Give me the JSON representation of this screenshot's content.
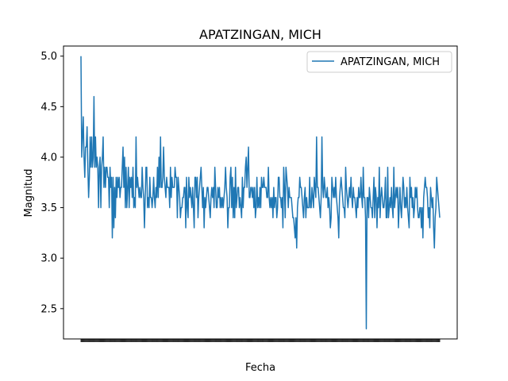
{
  "chart_data": {
    "type": "line",
    "title": "APATZINGAN, MICH",
    "xlabel": "Fecha",
    "ylabel": "Magnitud",
    "ylim": [
      2.2,
      5.1
    ],
    "yticks": [
      2.5,
      3.0,
      3.5,
      4.0,
      4.5,
      5.0
    ],
    "ytick_labels": [
      "2.5",
      "3.0",
      "3.5",
      "4.0",
      "4.5",
      "5.0"
    ],
    "grid": false,
    "legend_position": "top-right",
    "line_color": "#1f77b4",
    "series": [
      {
        "name": "APATZINGAN, MICH",
        "values": [
          5.0,
          4.0,
          4.2,
          4.4,
          4.0,
          3.8,
          4.1,
          4.1,
          4.3,
          3.9,
          3.6,
          3.8,
          4.2,
          3.9,
          4.2,
          3.9,
          4.0,
          4.6,
          3.9,
          4.2,
          3.9,
          4.0,
          3.9,
          3.5,
          3.9,
          4.0,
          3.5,
          3.9,
          4.0,
          4.2,
          3.7,
          3.9,
          3.7,
          3.9,
          3.9,
          3.8,
          3.8,
          3.5,
          3.9,
          3.7,
          3.8,
          3.2,
          3.8,
          3.3,
          3.7,
          3.4,
          3.8,
          3.6,
          3.8,
          3.7,
          3.8,
          3.6,
          3.7,
          3.7,
          3.9,
          4.1,
          3.7,
          4.0,
          3.5,
          3.9,
          3.5,
          3.7,
          3.9,
          3.5,
          3.8,
          3.7,
          3.8,
          3.6,
          3.9,
          3.5,
          3.6,
          3.5,
          4.2,
          3.7,
          3.8,
          3.7,
          3.6,
          3.7,
          3.6,
          3.6,
          3.9,
          3.7,
          3.6,
          3.3,
          3.6,
          3.9,
          3.9,
          3.5,
          3.6,
          3.5,
          3.8,
          3.6,
          3.6,
          3.5,
          3.6,
          3.8,
          3.6,
          3.5,
          3.7,
          3.6,
          3.9,
          3.6,
          4.0,
          3.7,
          4.2,
          3.7,
          3.7,
          3.8,
          4.1,
          3.8,
          3.7,
          3.6,
          3.8,
          3.7,
          3.7,
          3.7,
          3.5,
          3.9,
          3.6,
          3.8,
          3.7,
          3.7,
          3.7,
          3.9,
          3.8,
          3.8,
          3.4,
          3.8,
          3.7,
          3.6,
          3.4,
          3.5,
          3.5,
          3.6,
          3.6,
          3.7,
          3.7,
          3.3,
          3.8,
          3.5,
          3.4,
          3.8,
          3.6,
          3.7,
          3.6,
          3.5,
          3.7,
          3.5,
          3.3,
          3.8,
          3.8,
          3.6,
          3.8,
          3.4,
          3.6,
          3.7,
          3.8,
          3.9,
          3.7,
          3.5,
          3.7,
          3.3,
          3.6,
          3.5,
          3.6,
          3.7,
          3.7,
          3.6,
          3.5,
          3.4,
          3.6,
          3.7,
          3.6,
          3.7,
          3.5,
          3.9,
          3.7,
          3.5,
          3.5,
          3.7,
          3.6,
          3.7,
          3.5,
          3.6,
          3.5,
          3.6,
          3.5,
          3.6,
          3.7,
          3.9,
          3.7,
          3.6,
          3.3,
          3.5,
          3.5,
          3.8,
          3.9,
          3.5,
          3.8,
          3.4,
          3.7,
          3.4,
          3.9,
          3.5,
          3.6,
          3.7,
          3.7,
          3.5,
          3.6,
          3.5,
          3.4,
          3.8,
          3.5,
          3.7,
          3.7,
          3.9,
          4.0,
          3.7,
          3.9,
          4.1,
          3.6,
          3.6,
          3.7,
          3.7,
          3.6,
          3.7,
          3.5,
          3.7,
          3.4,
          3.5,
          3.8,
          3.5,
          3.6,
          3.5,
          3.7,
          3.5,
          3.8,
          3.7,
          3.7,
          3.8,
          3.7,
          3.7,
          3.7,
          3.6,
          3.6,
          3.9,
          3.6,
          3.5,
          3.6,
          3.5,
          3.6,
          3.4,
          3.7,
          3.5,
          3.6,
          3.6,
          3.4,
          3.5,
          3.8,
          3.8,
          3.6,
          3.6,
          3.5,
          3.6,
          3.3,
          3.9,
          3.7,
          3.4,
          3.9,
          3.8,
          3.7,
          3.5,
          3.7,
          3.6,
          3.6,
          3.6,
          3.5,
          3.4,
          3.4,
          3.3,
          3.2,
          3.4,
          3.1,
          3.5,
          3.6,
          3.6,
          3.8,
          3.7,
          3.7,
          3.6,
          3.5,
          3.4,
          3.6,
          3.7,
          3.4,
          3.6,
          3.5,
          3.5,
          3.5,
          3.8,
          3.5,
          3.5,
          3.7,
          3.6,
          3.5,
          3.8,
          3.7,
          3.6,
          4.2,
          3.7,
          3.7,
          3.6,
          3.5,
          3.4,
          3.6,
          4.2,
          3.7,
          3.6,
          3.8,
          3.7,
          3.6,
          3.6,
          3.7,
          3.5,
          3.6,
          3.5,
          3.3,
          3.4,
          3.8,
          3.7,
          3.6,
          3.7,
          3.6,
          3.8,
          3.6,
          3.5,
          3.4,
          3.2,
          3.6,
          3.7,
          3.8,
          3.7,
          3.6,
          3.5,
          3.5,
          3.4,
          3.9,
          3.7,
          3.6,
          3.5,
          3.6,
          3.7,
          3.6,
          3.8,
          3.6,
          3.5,
          3.7,
          3.6,
          3.6,
          3.5,
          3.4,
          3.6,
          3.5,
          3.7,
          3.6,
          3.6,
          3.8,
          3.6,
          3.5,
          3.9,
          3.6,
          3.6,
          3.4,
          2.3,
          3.6,
          3.6,
          3.4,
          3.7,
          3.6,
          3.5,
          3.5,
          3.4,
          3.6,
          3.8,
          3.4,
          3.7,
          3.6,
          3.3,
          3.6,
          3.5,
          3.9,
          3.4,
          3.6,
          3.7,
          3.6,
          3.5,
          3.5,
          3.6,
          3.8,
          3.4,
          3.4,
          3.9,
          3.4,
          3.5,
          3.6,
          3.5,
          3.7,
          3.5,
          3.4,
          3.9,
          3.5,
          3.6,
          3.7,
          3.6,
          3.7,
          3.3,
          3.5,
          3.7,
          3.5,
          3.4,
          3.6,
          3.8,
          3.7,
          3.5,
          3.6,
          3.5,
          3.7,
          3.5,
          3.4,
          3.3,
          3.8,
          3.6,
          3.7,
          3.5,
          3.6,
          3.4,
          3.5,
          3.7,
          3.6,
          3.7,
          3.5,
          3.4,
          3.4,
          3.5,
          3.5,
          3.3,
          3.5,
          3.2,
          3.6,
          3.7,
          3.8,
          3.7,
          3.7,
          3.6,
          3.4,
          3.5,
          3.3,
          3.7,
          3.6,
          3.5,
          3.6,
          3.3,
          3.1,
          3.4,
          3.5,
          3.8,
          3.7,
          3.6,
          3.5,
          3.4
        ]
      }
    ]
  }
}
